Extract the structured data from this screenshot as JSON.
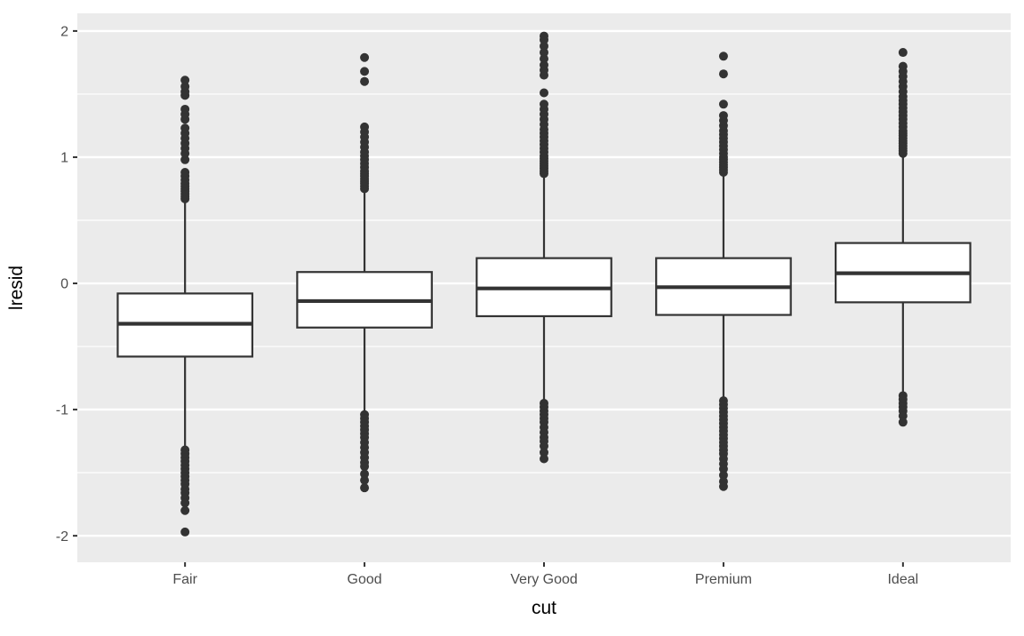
{
  "chart_data": {
    "type": "boxplot",
    "title": "",
    "xlabel": "cut",
    "ylabel": "lresid",
    "categories": [
      "Fair",
      "Good",
      "Very Good",
      "Premium",
      "Ideal"
    ],
    "y_ticks": [
      -2,
      -1,
      0,
      1,
      2
    ],
    "y_tick_labels": [
      "-2",
      "-1",
      "0",
      "1",
      "2"
    ],
    "y_minor_ticks": [
      -1.5,
      -0.5,
      0.5,
      1.5
    ],
    "ylim": [
      -2.21,
      2.14
    ],
    "grid": true,
    "legend": false,
    "boxes": [
      {
        "category": "Fair",
        "whisker_low": -1.3,
        "q1": -0.58,
        "median": -0.32,
        "q3": -0.08,
        "whisker_high": 0.66,
        "outliers_high": [
          0.67,
          0.69,
          0.71,
          0.73,
          0.75,
          0.77,
          0.79,
          0.82,
          0.85,
          0.88,
          0.98,
          1.03,
          1.07,
          1.11,
          1.15,
          1.19,
          1.23,
          1.3,
          1.34,
          1.38,
          1.49,
          1.52,
          1.56,
          1.61
        ],
        "outliers_low": [
          -1.32,
          -1.35,
          -1.38,
          -1.41,
          -1.44,
          -1.47,
          -1.5,
          -1.53,
          -1.56,
          -1.59,
          -1.63,
          -1.66,
          -1.7,
          -1.74,
          -1.8,
          -1.97
        ]
      },
      {
        "category": "Good",
        "whisker_low": -1.02,
        "q1": -0.35,
        "median": -0.14,
        "q3": 0.09,
        "whisker_high": 0.73,
        "outliers_high": [
          0.75,
          0.77,
          0.79,
          0.81,
          0.83,
          0.85,
          0.87,
          0.89,
          0.92,
          0.95,
          0.98,
          1.01,
          1.04,
          1.08,
          1.12,
          1.16,
          1.2,
          1.24,
          1.6,
          1.68,
          1.79
        ],
        "outliers_low": [
          -1.04,
          -1.07,
          -1.1,
          -1.13,
          -1.16,
          -1.19,
          -1.22,
          -1.26,
          -1.3,
          -1.34,
          -1.38,
          -1.42,
          -1.45,
          -1.51,
          -1.56,
          -1.62
        ]
      },
      {
        "category": "Very Good",
        "whisker_low": -0.93,
        "q1": -0.26,
        "median": -0.04,
        "q3": 0.2,
        "whisker_high": 0.85,
        "outliers_high": [
          0.87,
          0.89,
          0.91,
          0.93,
          0.95,
          0.97,
          0.99,
          1.01,
          1.04,
          1.07,
          1.1,
          1.13,
          1.16,
          1.19,
          1.22,
          1.26,
          1.3,
          1.34,
          1.38,
          1.42,
          1.51,
          1.65,
          1.69,
          1.73,
          1.78,
          1.83,
          1.88,
          1.93,
          1.96
        ],
        "outliers_low": [
          -0.95,
          -0.98,
          -1.01,
          -1.04,
          -1.07,
          -1.1,
          -1.14,
          -1.18,
          -1.22,
          -1.25,
          -1.29,
          -1.34,
          -1.39
        ]
      },
      {
        "category": "Premium",
        "whisker_low": -0.91,
        "q1": -0.25,
        "median": -0.03,
        "q3": 0.2,
        "whisker_high": 0.86,
        "outliers_high": [
          0.88,
          0.9,
          0.92,
          0.94,
          0.96,
          0.98,
          1.0,
          1.03,
          1.06,
          1.09,
          1.12,
          1.15,
          1.18,
          1.21,
          1.25,
          1.29,
          1.33,
          1.42,
          1.66,
          1.8
        ],
        "outliers_low": [
          -0.93,
          -0.96,
          -0.99,
          -1.02,
          -1.05,
          -1.08,
          -1.11,
          -1.14,
          -1.17,
          -1.2,
          -1.23,
          -1.26,
          -1.29,
          -1.32,
          -1.35,
          -1.39,
          -1.43,
          -1.47,
          -1.52,
          -1.57,
          -1.61
        ]
      },
      {
        "category": "Ideal",
        "whisker_low": -0.86,
        "q1": -0.15,
        "median": 0.08,
        "q3": 0.32,
        "whisker_high": 1.01,
        "outliers_high": [
          1.03,
          1.05,
          1.07,
          1.09,
          1.11,
          1.13,
          1.15,
          1.17,
          1.19,
          1.21,
          1.24,
          1.27,
          1.3,
          1.33,
          1.36,
          1.39,
          1.42,
          1.45,
          1.48,
          1.52,
          1.56,
          1.6,
          1.64,
          1.68,
          1.72,
          1.83
        ],
        "outliers_low": [
          -0.89,
          -0.92,
          -0.95,
          -0.98,
          -1.01,
          -1.05,
          -1.1
        ]
      }
    ],
    "colors": {
      "panel_background": "#EBEBEB",
      "grid_line": "#FFFFFF",
      "box_stroke": "#333333",
      "box_fill": "#FFFFFF",
      "outlier_point": "#333333",
      "axis_tick": "#333333",
      "tick_label": "#4D4D4D",
      "axis_title": "#000000",
      "figure_background": "#FFFFFF"
    }
  }
}
